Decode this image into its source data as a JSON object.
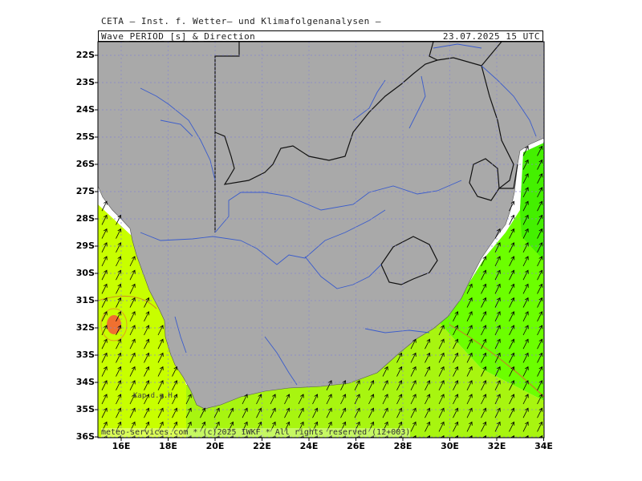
{
  "header": {
    "institute": "CETA — Inst. f. Wetter— und Klimafolgenanalysen —",
    "product": "Wave_PERIOD_[s]_&_Direction",
    "valid_time": "23.07.2025 15 UTC"
  },
  "axes": {
    "lat_labels": [
      "22S",
      "23S",
      "24S",
      "25S",
      "26S",
      "27S",
      "28S",
      "29S",
      "30S",
      "31S",
      "32S",
      "33S",
      "34S",
      "35S",
      "36S"
    ],
    "lon_labels": [
      "16E",
      "18E",
      "20E",
      "22E",
      "24E",
      "26E",
      "28E",
      "30E",
      "32E",
      "34E"
    ]
  },
  "map_text": {
    "place_label": "Kap d.g.H.",
    "credit": "meteo-services.com * (c)2025 IWKF * All rights reserved (12+003)"
  },
  "colors": {
    "land": "#a9a9a9",
    "sea_west": "#c8ff00",
    "sea_south": "#a4f20a",
    "sea_east": "#66ff00",
    "hotspot": "#f07030",
    "rivers": "#3a5ccc",
    "borders": "#000000",
    "grid": "#8888cc"
  },
  "map_icons": [
    "wave-direction-arrow"
  ]
}
